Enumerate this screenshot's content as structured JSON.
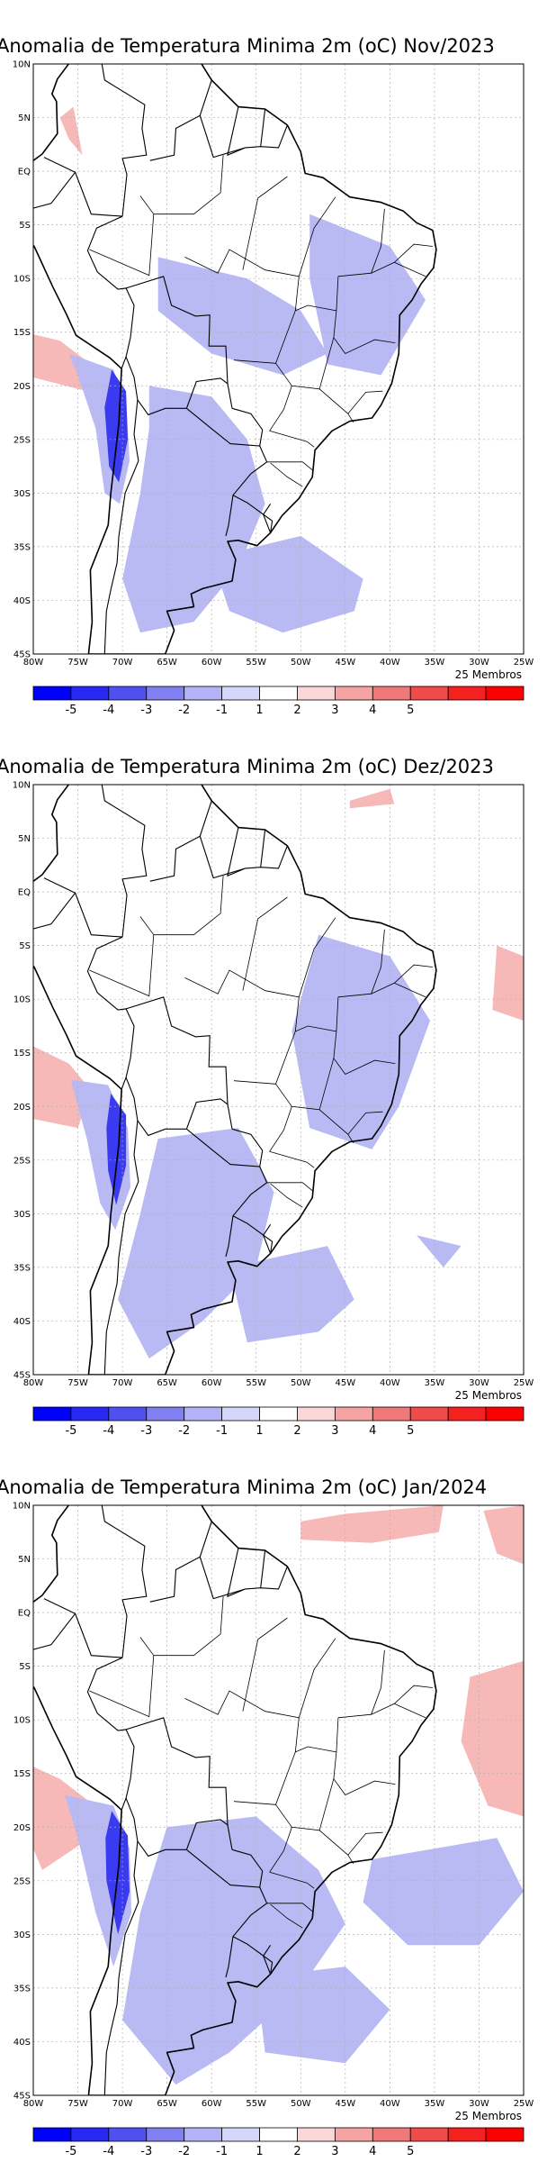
{
  "colorbar": {
    "labels": [
      "-5",
      "-4",
      "-3",
      "-2",
      "-1",
      "1",
      "2",
      "3",
      "4",
      "5"
    ],
    "colors": [
      "#0000ff",
      "#2828f4",
      "#5050f0",
      "#8080f0",
      "#b3b3f5",
      "#d6d6fa",
      "#ffffff",
      "#fad6d6",
      "#f5a3a3",
      "#f07878",
      "#f04a4a",
      "#f52020",
      "#ff0000"
    ]
  },
  "axes": {
    "lat_labels": [
      "10N",
      "5N",
      "EQ",
      "5S",
      "10S",
      "15S",
      "20S",
      "25S",
      "30S",
      "35S",
      "40S",
      "45S"
    ],
    "lon_labels": [
      "80W",
      "75W",
      "70W",
      "65W",
      "60W",
      "55W",
      "50W",
      "45W",
      "40W",
      "35W",
      "30W",
      "25W"
    ]
  },
  "panels": [
    {
      "title": "Anomalia de Temperatura Minima 2m (oC) Nov/2023",
      "members": "25 Membros"
    },
    {
      "title": "Anomalia de Temperatura Minima 2m (oC) Dez/2023",
      "members": "25 Membros"
    },
    {
      "title": "Anomalia de Temperatura Minima 2m (oC) Jan/2024",
      "members": "25 Membros"
    }
  ]
}
